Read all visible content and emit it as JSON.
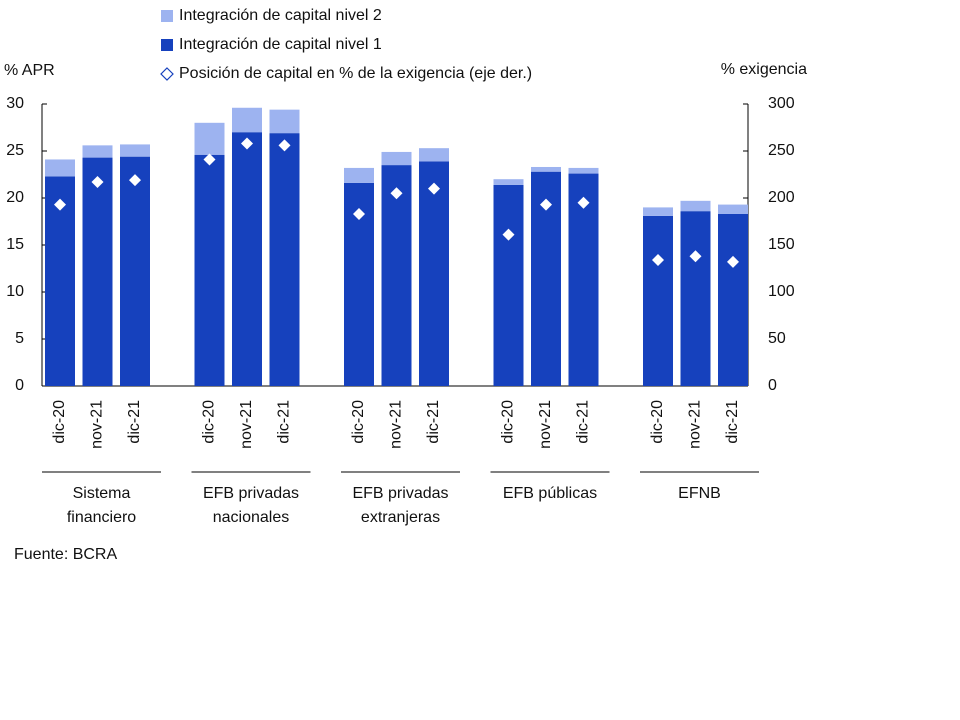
{
  "chart_data": {
    "type": "bar",
    "stacked": true,
    "legend": "top-left",
    "ylabel": "% APR",
    "y2label": "% exigencia",
    "ylim": [
      0,
      30
    ],
    "yticks": [
      0,
      5,
      10,
      15,
      20,
      25,
      30
    ],
    "y2lim": [
      0,
      300
    ],
    "y2ticks": [
      0,
      50,
      100,
      150,
      200,
      250,
      300
    ],
    "categories": [
      "dic-20",
      "nov-21",
      "dic-21",
      "dic-20",
      "nov-21",
      "dic-21",
      "dic-20",
      "nov-21",
      "dic-21",
      "dic-20",
      "nov-21",
      "dic-21",
      "dic-20",
      "nov-21",
      "dic-21"
    ],
    "groups": [
      {
        "label": [
          "Sistema",
          "financiero"
        ],
        "size": 3
      },
      {
        "label": [
          "EFB privadas",
          "nacionales"
        ],
        "size": 3
      },
      {
        "label": [
          "EFB privadas",
          "extranjeras"
        ],
        "size": 3
      },
      {
        "label": [
          "EFB públicas"
        ],
        "size": 3
      },
      {
        "label": [
          "EFNB"
        ],
        "size": 3
      }
    ],
    "series": [
      {
        "name": "Integración de capital nivel 1",
        "color": "#1641bd",
        "values": [
          22.3,
          24.3,
          24.4,
          24.6,
          27.0,
          26.9,
          21.6,
          23.5,
          23.9,
          21.4,
          22.8,
          22.6,
          18.1,
          18.6,
          18.3
        ]
      },
      {
        "name": "Integración de capital nivel 2",
        "color": "#9db3f0",
        "values": [
          1.8,
          1.3,
          1.3,
          3.4,
          2.6,
          2.5,
          1.6,
          1.4,
          1.4,
          0.6,
          0.5,
          0.6,
          0.9,
          1.1,
          1.0
        ]
      },
      {
        "name": "Posición de capital en % de la exigencia (eje der.)",
        "color": "#ffffff",
        "axis": "y2",
        "marker": "diamond",
        "values": [
          193,
          217,
          219,
          241,
          258,
          256,
          183,
          205,
          210,
          161,
          193,
          195,
          134,
          138,
          132
        ]
      }
    ],
    "source": "Fuente: BCRA"
  }
}
